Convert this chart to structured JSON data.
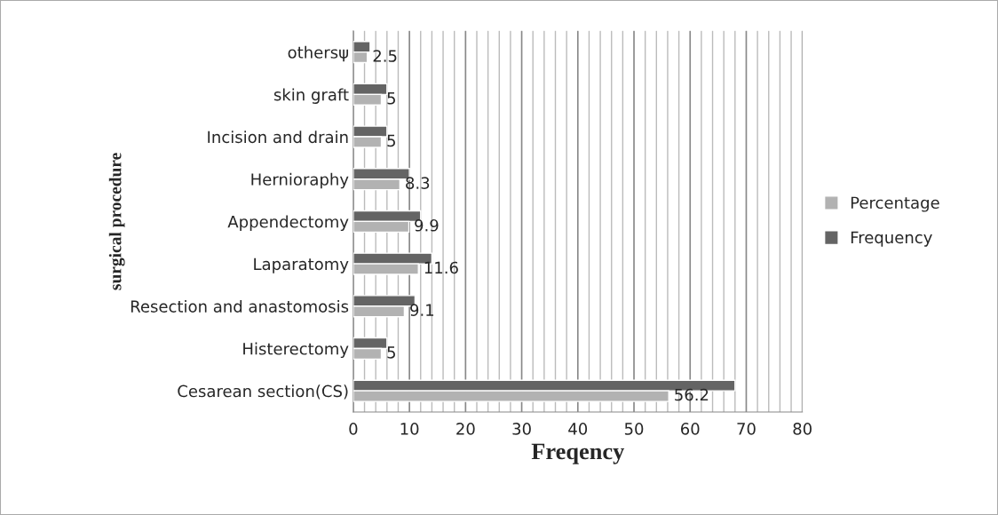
{
  "chart_data": {
    "type": "bar",
    "orientation": "horizontal",
    "xlabel": "Freqency",
    "ylabel": "surgical procedure",
    "categories": [
      "othersψ",
      "skin graft",
      "Incision and drain",
      "Hernioraphy",
      "Appendectomy",
      "Laparatomy",
      "Resection and anastomosis",
      "Histerectomy",
      "Cesarean section(CS)"
    ],
    "series": [
      {
        "name": "Frequency",
        "color": "#646464",
        "values": [
          3,
          6,
          6,
          10,
          12,
          14,
          11,
          6,
          68
        ]
      },
      {
        "name": "Percentage",
        "color": "#b2b2b2",
        "values": [
          2.5,
          5,
          5,
          8.3,
          9.9,
          11.6,
          9.1,
          5,
          56.2
        ],
        "value_labels": [
          "2.5",
          "5",
          "5",
          "8.3",
          "9.9",
          "11.6",
          "9.1",
          "5",
          "56.2"
        ]
      }
    ],
    "xlim": [
      0,
      80
    ],
    "xticks": [
      0,
      {
        "value": 2,
        "label": null
      },
      {
        "value": 4,
        "label": null
      },
      {
        "value": 6,
        "label": null
      },
      {
        "value": 8,
        "label": null
      },
      10,
      {
        "value": 12,
        "label": null
      },
      {
        "value": 14,
        "label": null
      },
      {
        "value": 16,
        "label": null
      },
      {
        "value": 18,
        "label": null
      },
      20,
      {
        "value": 22,
        "label": null
      },
      {
        "value": 24,
        "label": null
      },
      {
        "value": 26,
        "label": null
      },
      {
        "value": 28,
        "label": null
      },
      30,
      {
        "value": 32,
        "label": null
      },
      {
        "value": 34,
        "label": null
      },
      {
        "value": 36,
        "label": null
      },
      {
        "value": 38,
        "label": null
      },
      40,
      {
        "value": 42,
        "label": null
      },
      {
        "value": 44,
        "label": null
      },
      {
        "value": 46,
        "label": null
      },
      {
        "value": 48,
        "label": null
      },
      50,
      {
        "value": 52,
        "label": null
      },
      {
        "value": 54,
        "label": null
      },
      {
        "value": 56,
        "label": null
      },
      {
        "value": 58,
        "label": null
      },
      60,
      {
        "value": 62,
        "label": null
      },
      {
        "value": 64,
        "label": null
      },
      {
        "value": 66,
        "label": null
      },
      {
        "value": 68,
        "label": null
      },
      70,
      {
        "value": 72,
        "label": null
      },
      {
        "value": 74,
        "label": null
      },
      {
        "value": 76,
        "label": null
      },
      {
        "value": 78,
        "label": null
      },
      80
    ],
    "grid": "x",
    "legend": "right"
  }
}
